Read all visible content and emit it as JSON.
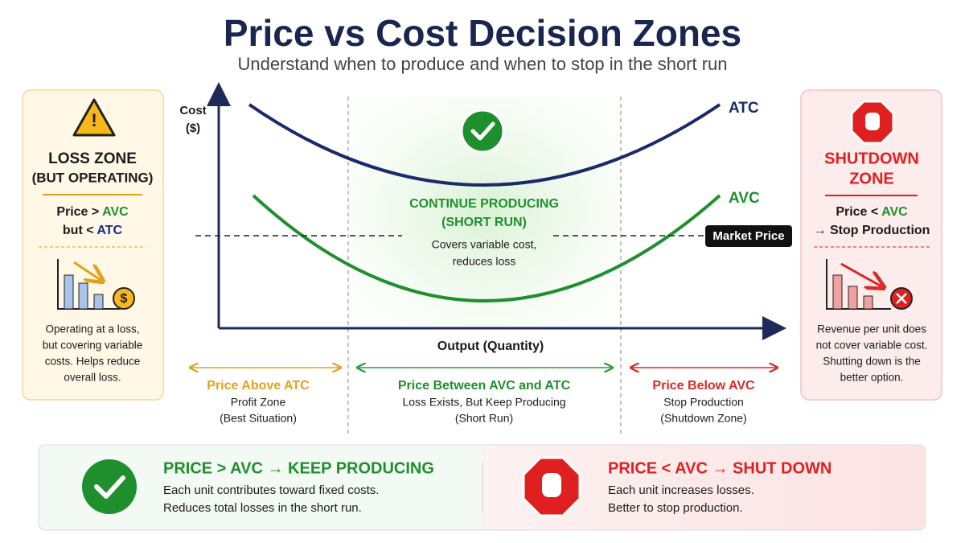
{
  "header": {
    "title": "Price vs Cost Decision Zones",
    "subtitle": "Understand when to produce and when to stop in the short run"
  },
  "left_panel": {
    "title_lines": [
      "LOSS ZONE",
      "(BUT OPERATING)"
    ],
    "rule_1": [
      "Price > ",
      "AVC"
    ],
    "rule_2": [
      "but < ",
      "ATC"
    ],
    "description_lines": [
      "Operating at a loss,",
      "but covering variable",
      "costs. Helps reduce",
      "overall loss."
    ]
  },
  "right_panel": {
    "title_lines": [
      "SHUTDOWN",
      "ZONE"
    ],
    "rule_1": [
      "Price < ",
      "AVC"
    ],
    "rule_2": "→ Stop Production",
    "description_lines": [
      "Revenue per unit does",
      "not cover variable cost.",
      "Shutting down is the",
      "better option."
    ]
  },
  "graph": {
    "y_label_lines": [
      "Cost",
      "($)"
    ],
    "x_label": "Output (Quantity)",
    "curve_labels": [
      "ATC",
      "AVC"
    ],
    "market_price_label": "Market Price",
    "center_title_lines": [
      "CONTINUE PRODUCING",
      "(SHORT RUN)"
    ],
    "center_description_lines": [
      "Covers variable cost,",
      "reduces loss"
    ]
  },
  "zones": [
    {
      "title": "Price Above ATC",
      "lines": [
        "Profit Zone",
        "(Best Situation)"
      ]
    },
    {
      "title": "Price Between AVC and ATC",
      "lines": [
        "Loss Exists, But Keep Producing",
        "(Short Run)"
      ]
    },
    {
      "title": "Price Below AVC",
      "lines": [
        "Stop Production",
        "(Shutdown Zone)"
      ]
    }
  ],
  "footer": {
    "left": {
      "title": "PRICE > AVC → KEEP PRODUCING",
      "lines": [
        "Each unit contributes toward fixed costs.",
        "Reduces total losses in the short run."
      ]
    },
    "right": {
      "title": "PRICE < AVC → SHUT DOWN",
      "lines": [
        "Each unit increases losses.",
        "Better to stop production."
      ]
    }
  }
}
